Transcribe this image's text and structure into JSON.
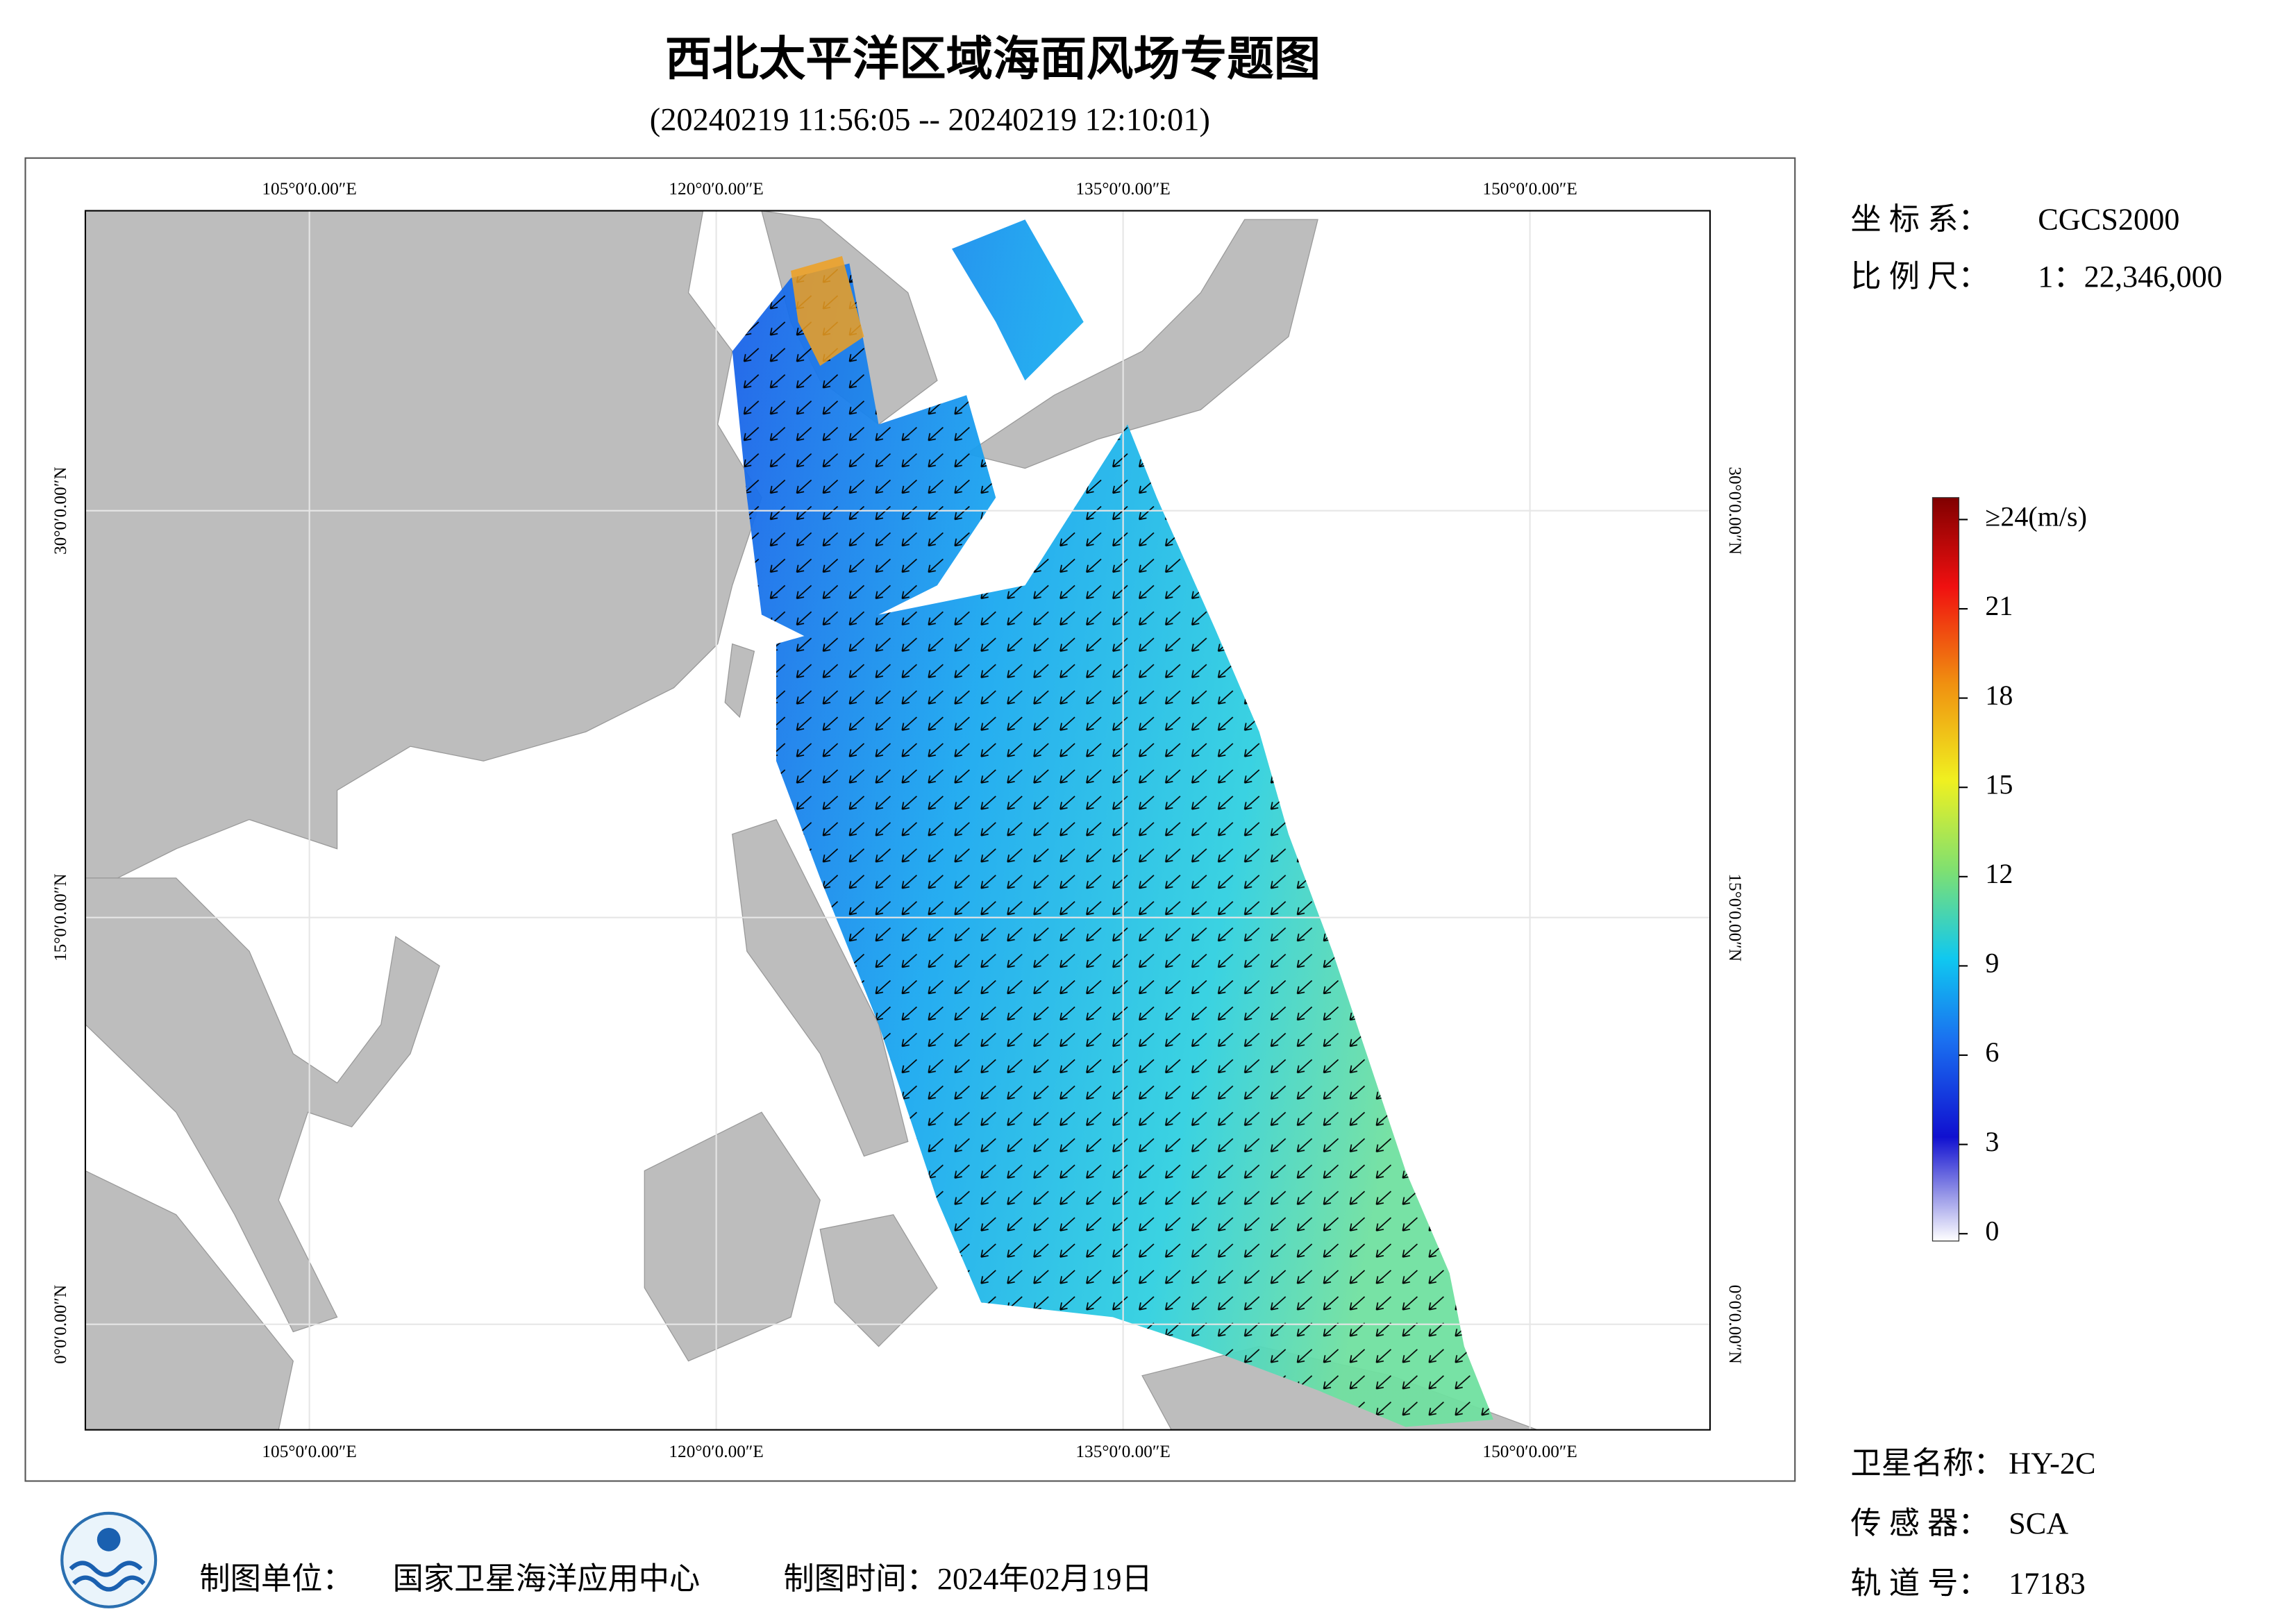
{
  "header": {
    "title": "西北太平洋区域海面风场专题图",
    "subtitle": "(20240219 11:56:05 -- 20240219 12:10:01)"
  },
  "map": {
    "lonlim": [
      96.74,
      156.64
    ],
    "latlim": [
      -3.89,
      41.06
    ],
    "lonticks": [
      {
        "value": 105,
        "label": "105°0′0.00″E"
      },
      {
        "value": 120,
        "label": "120°0′0.00″E"
      },
      {
        "value": 135,
        "label": "135°0′0.00″E"
      },
      {
        "value": 150,
        "label": "150°0′0.00″E"
      }
    ],
    "latticks": [
      {
        "value": 0,
        "label": "0°0′0.00″N"
      },
      {
        "value": 15,
        "label": "15°0′0.00″N"
      },
      {
        "value": 30,
        "label": "30°0′0.00″N"
      }
    ]
  },
  "colorbar": {
    "range": [
      0,
      24
    ],
    "ticks": [
      0,
      3,
      6,
      9,
      12,
      15,
      18,
      21,
      {
        "value": 24,
        "label": "≥24(m/s)"
      }
    ]
  },
  "info": [
    [
      "坐 标 系：",
      "CGCS2000"
    ],
    [
      "比 例 尺：",
      "1：22,346,000"
    ]
  ],
  "satellite": [
    [
      "卫星名称：",
      "HY-2C"
    ],
    [
      "传 感 器：",
      "SCA"
    ],
    [
      "轨 道 号：",
      "17183"
    ]
  ],
  "footer": {
    "unit_label": "制图单位：",
    "unit": "国家卫星海洋应用中心",
    "date": "制图时间：2024年02月19日"
  }
}
